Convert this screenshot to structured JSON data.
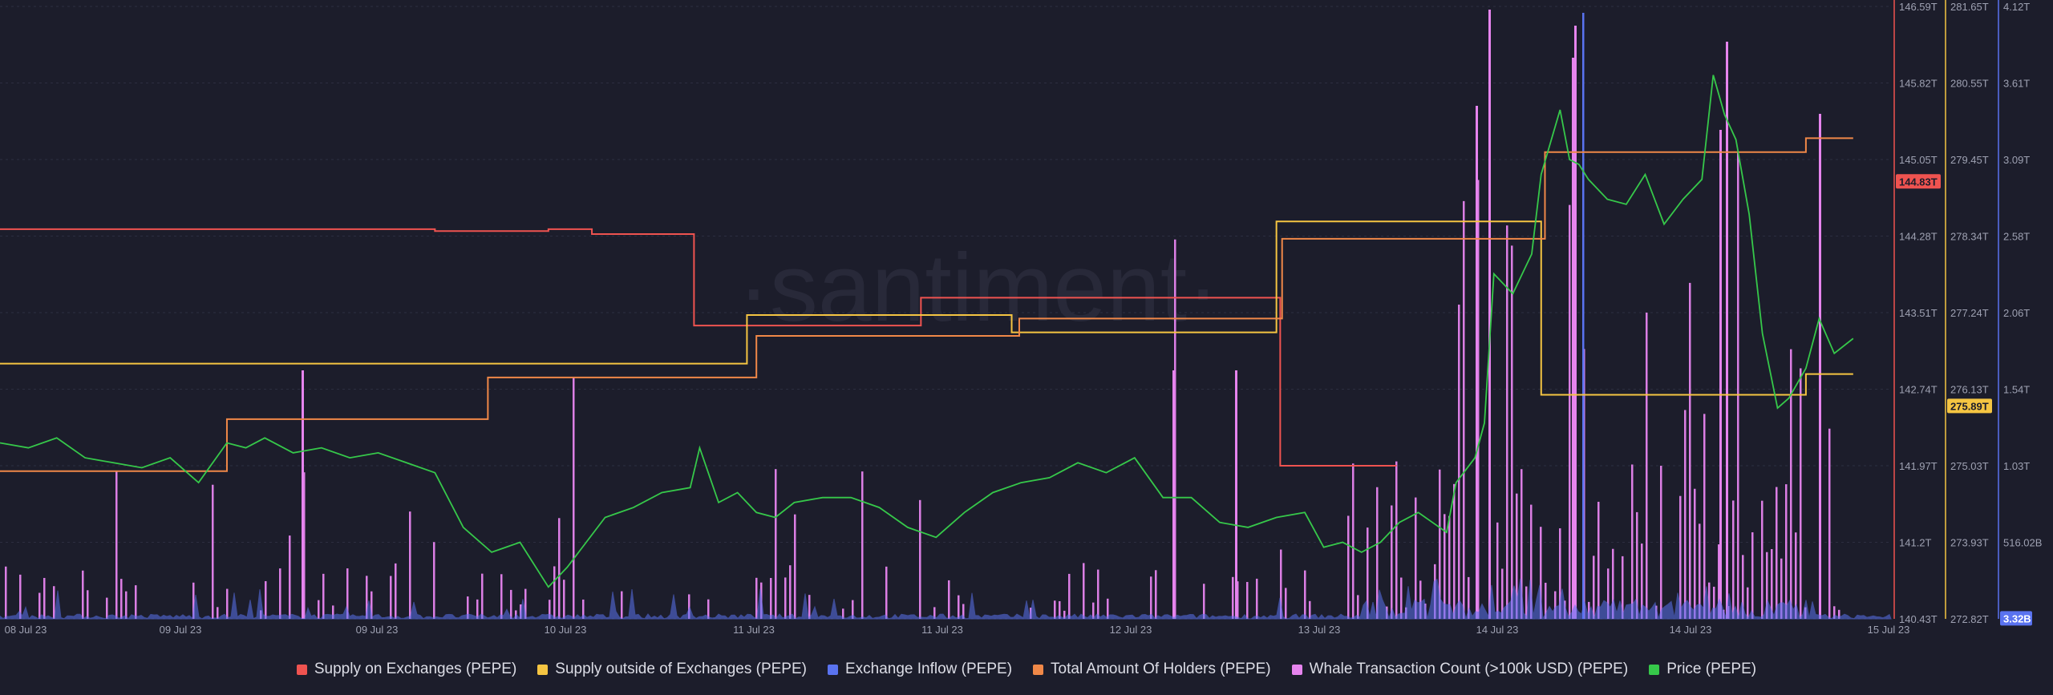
{
  "watermark": "·santiment·",
  "legend": [
    {
      "name": "Supply on Exchanges (PEPE)",
      "color": "#ef5350"
    },
    {
      "name": "Supply outside of Exchanges (PEPE)",
      "color": "#f5c542"
    },
    {
      "name": "Exchange Inflow (PEPE)",
      "color": "#5a73f0"
    },
    {
      "name": "Total Amount Of Holders (PEPE)",
      "color": "#f08848"
    },
    {
      "name": "Whale Transaction Count (>100k USD) (PEPE)",
      "color": "#e684ee"
    },
    {
      "name": "Price (PEPE)",
      "color": "#36c84a"
    }
  ],
  "chart_data": {
    "type": "line",
    "x_ticks": [
      "08 Jul 23",
      "09 Jul 23",
      "09 Jul 23",
      "10 Jul 23",
      "11 Jul 23",
      "11 Jul 23",
      "12 Jul 23",
      "13 Jul 23",
      "14 Jul 23",
      "14 Jul 23",
      "15 Jul 23"
    ],
    "axes": [
      {
        "id": "supply_on_exchanges",
        "color": "#ef5350",
        "ticks": [
          "146.59T",
          "145.82T",
          "145.05T",
          "144.28T",
          "143.51T",
          "142.74T",
          "141.97T",
          "141.2T",
          "140.43T"
        ],
        "ylim": [
          140.43,
          146.59
        ],
        "unit": "T",
        "current_label": "144.83T",
        "current_value": 144.83
      },
      {
        "id": "supply_outside_exchanges",
        "color": "#f5c542",
        "ticks": [
          "281.65T",
          "280.55T",
          "279.45T",
          "278.34T",
          "277.24T",
          "276.13T",
          "275.03T",
          "273.93T",
          "272.82T"
        ],
        "ylim": [
          272.82,
          281.65
        ],
        "unit": "T",
        "current_label": "275.89T",
        "current_value": 275.89
      },
      {
        "id": "exchange_inflow",
        "color": "#5a73f0",
        "ticks": [
          "4.12T",
          "3.61T",
          "3.09T",
          "2.58T",
          "2.06T",
          "1.54T",
          "1.03T",
          "516.02B",
          ""
        ],
        "ylim": [
          0,
          4.12
        ],
        "unit": "T",
        "current_label": "3.32B",
        "current_value": 0.00332
      }
    ],
    "series": [
      {
        "name": "Supply on Exchanges (PEPE)",
        "axis": "supply_on_exchanges",
        "color": "#ef5350",
        "style": "step",
        "x": [
          0,
          0.23,
          0.29,
          0.313,
          0.361,
          0.367,
          0.481,
          0.487,
          0.532,
          0.553,
          0.671,
          0.677,
          0.738,
          0.7385
        ],
        "values": [
          144.35,
          144.33,
          144.35,
          144.3,
          144.3,
          143.38,
          143.38,
          143.66,
          143.66,
          143.66,
          143.66,
          141.97,
          141.97,
          141.97
        ]
      },
      {
        "name": "Supply outside of Exchanges (PEPE)",
        "axis": "supply_outside_exchanges",
        "color": "#f5c542",
        "style": "step",
        "x": [
          0,
          0.39,
          0.395,
          0.53,
          0.535,
          0.67,
          0.675,
          0.81,
          0.815,
          0.95,
          0.955,
          0.98
        ],
        "values": [
          276.5,
          276.5,
          277.2,
          277.2,
          276.95,
          276.95,
          278.55,
          278.55,
          276.05,
          276.05,
          276.35,
          276.35
        ]
      },
      {
        "name": "Total Amount Of Holders (PEPE)",
        "axis": "supply_outside_exchanges",
        "color": "#f08848",
        "style": "step",
        "x": [
          0,
          0.116,
          0.12,
          0.253,
          0.258,
          0.394,
          0.4,
          0.533,
          0.539,
          0.672,
          0.678,
          0.811,
          0.817,
          0.95,
          0.955,
          0.98
        ],
        "values": [
          274.95,
          274.95,
          275.7,
          275.7,
          276.3,
          276.3,
          276.9,
          276.9,
          277.15,
          277.15,
          278.3,
          278.3,
          279.55,
          279.55,
          279.75,
          279.75
        ]
      },
      {
        "name": "Price (PEPE)",
        "axis": "supply_on_exchanges",
        "color": "#36c84a",
        "style": "line",
        "x": [
          0,
          0.015,
          0.03,
          0.045,
          0.06,
          0.075,
          0.09,
          0.105,
          0.12,
          0.13,
          0.14,
          0.155,
          0.17,
          0.185,
          0.2,
          0.215,
          0.23,
          0.245,
          0.26,
          0.275,
          0.29,
          0.3,
          0.31,
          0.32,
          0.335,
          0.35,
          0.365,
          0.37,
          0.38,
          0.39,
          0.4,
          0.41,
          0.42,
          0.435,
          0.45,
          0.465,
          0.48,
          0.495,
          0.51,
          0.525,
          0.54,
          0.555,
          0.57,
          0.585,
          0.6,
          0.615,
          0.63,
          0.645,
          0.66,
          0.675,
          0.69,
          0.7,
          0.71,
          0.72,
          0.73,
          0.74,
          0.75,
          0.765,
          0.77,
          0.78,
          0.785,
          0.79,
          0.8,
          0.81,
          0.815,
          0.825,
          0.83,
          0.835,
          0.84,
          0.85,
          0.86,
          0.87,
          0.88,
          0.89,
          0.9,
          0.906,
          0.912,
          0.918,
          0.925,
          0.932,
          0.94,
          0.946,
          0.955,
          0.962,
          0.97,
          0.98
        ],
        "values": [
          142.2,
          142.15,
          142.25,
          142.05,
          142.0,
          141.95,
          142.05,
          141.8,
          142.2,
          142.15,
          142.25,
          142.1,
          142.15,
          142.05,
          142.1,
          142.0,
          141.9,
          141.35,
          141.1,
          141.2,
          140.75,
          140.95,
          141.2,
          141.45,
          141.55,
          141.7,
          141.75,
          142.15,
          141.6,
          141.7,
          141.5,
          141.45,
          141.6,
          141.65,
          141.65,
          141.55,
          141.35,
          141.25,
          141.5,
          141.7,
          141.8,
          141.85,
          142.0,
          141.9,
          142.05,
          141.65,
          141.65,
          141.4,
          141.35,
          141.45,
          141.5,
          141.15,
          141.2,
          141.1,
          141.2,
          141.4,
          141.5,
          141.3,
          141.8,
          142.05,
          142.4,
          143.9,
          143.7,
          144.1,
          144.9,
          145.55,
          145.05,
          145.0,
          144.85,
          144.65,
          144.6,
          144.9,
          144.4,
          144.65,
          144.85,
          145.9,
          145.5,
          145.25,
          144.5,
          143.3,
          142.55,
          142.65,
          142.95,
          143.45,
          143.1,
          143.25
        ]
      }
    ],
    "bars": [
      {
        "name": "Whale Transaction Count (>100k USD) (PEPE)",
        "color": "#e684ee",
        "note": "dense spikes across the range, highest near 13-14 Jul"
      },
      {
        "name": "Exchange Inflow (PEPE)",
        "color": "#5a73f0",
        "note": "low-level activity with a peak near 14 Jul"
      }
    ]
  }
}
